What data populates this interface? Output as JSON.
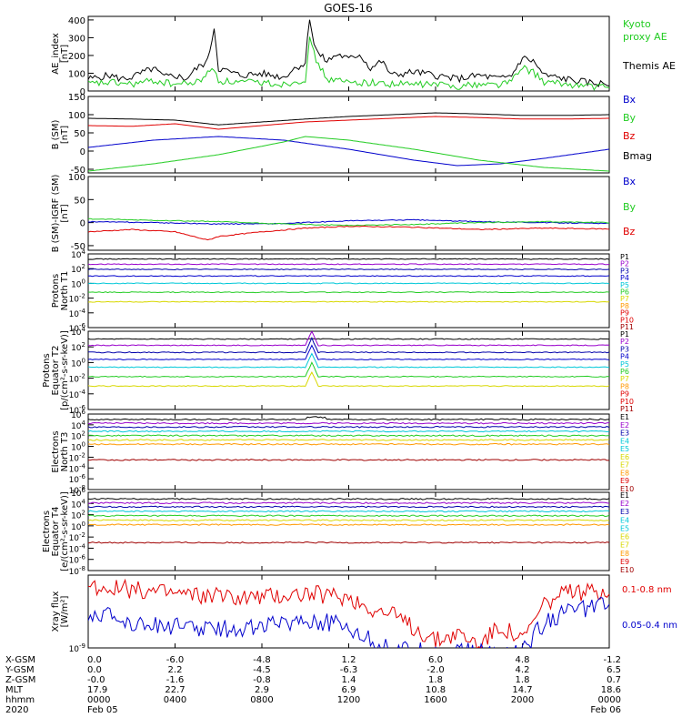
{
  "title": "GOES-16",
  "colors": {
    "black": "#000000",
    "red": "#e00000",
    "green": "#22cc22",
    "blue": "#0000cc",
    "cyan": "#00c8d8",
    "darkred": "#a00000",
    "orange": "#ff9900",
    "yellow": "#d8d800",
    "purple": "#9900cc",
    "magenta": "#cc00aa",
    "darkblue": "#0000aa"
  },
  "chart_data": [
    {
      "type": "line",
      "ylabel": [
        "AE_index",
        "[nT]"
      ],
      "ylim": [
        0,
        420
      ],
      "yticks": [
        "400",
        "300",
        "200",
        "100",
        "0"
      ],
      "ytick_values": [
        400,
        300,
        200,
        100,
        0
      ],
      "legend": [
        {
          "name": "Kyoto",
          "color": "green"
        },
        {
          "name": "proxy AE",
          "color": "green"
        },
        {
          "name": "Themis AE",
          "color": "black"
        }
      ],
      "series": [
        {
          "name": "Themis AE",
          "color": "black",
          "x": [
            0,
            1,
            1.5,
            2,
            3,
            3.5,
            4,
            4.5,
            5,
            5.5,
            5.8,
            6,
            6.5,
            7,
            8,
            9,
            9.5,
            10,
            10.2,
            10.4,
            10.6,
            11,
            11.5,
            12,
            12.5,
            13,
            13.5,
            14,
            15,
            16,
            17,
            18,
            19,
            19.5,
            20,
            20.5,
            21,
            22,
            23,
            24
          ],
          "y": [
            60,
            80,
            60,
            70,
            120,
            70,
            80,
            60,
            120,
            160,
            350,
            120,
            100,
            80,
            90,
            70,
            120,
            150,
            410,
            260,
            200,
            160,
            200,
            170,
            200,
            120,
            160,
            80,
            100,
            80,
            60,
            80,
            60,
            80,
            180,
            160,
            80,
            60,
            40,
            30
          ]
        },
        {
          "name": "Kyoto proxy AE",
          "color": "green",
          "x": [
            0,
            1,
            2,
            3,
            4,
            5,
            5.8,
            6,
            7,
            8,
            9,
            10,
            10.2,
            10.4,
            10.6,
            11,
            12,
            13,
            14,
            15,
            16,
            17,
            18,
            19,
            19.5,
            20,
            20.5,
            21,
            22,
            23,
            24
          ],
          "y": [
            30,
            40,
            30,
            50,
            30,
            40,
            120,
            50,
            40,
            40,
            30,
            60,
            280,
            200,
            140,
            60,
            40,
            40,
            30,
            30,
            30,
            20,
            30,
            30,
            50,
            120,
            100,
            40,
            30,
            20,
            10
          ]
        }
      ]
    },
    {
      "type": "line",
      "ylabel": [
        "B (SM)",
        "[nT]"
      ],
      "ylim": [
        -60,
        150
      ],
      "yticks": [
        "150",
        "100",
        "50",
        "0",
        "-50"
      ],
      "ytick_values": [
        150,
        100,
        50,
        0,
        -50
      ],
      "legend": [
        {
          "name": "Bx",
          "color": "blue"
        },
        {
          "name": "By",
          "color": "green"
        },
        {
          "name": "Bz",
          "color": "red"
        },
        {
          "name": "Bmag",
          "color": "black"
        }
      ],
      "series": [
        {
          "name": "Bx",
          "color": "blue",
          "x": [
            0,
            3,
            6,
            9,
            12,
            15,
            17,
            19,
            21,
            24
          ],
          "y": [
            10,
            30,
            40,
            30,
            5,
            -25,
            -40,
            -35,
            -20,
            5
          ]
        },
        {
          "name": "By",
          "color": "green",
          "x": [
            0,
            3,
            6,
            9,
            10,
            12,
            15,
            18,
            21,
            24
          ],
          "y": [
            -55,
            -35,
            -10,
            25,
            40,
            30,
            5,
            -25,
            -45,
            -55
          ]
        },
        {
          "name": "Bz",
          "color": "red",
          "x": [
            0,
            2,
            4,
            6,
            8,
            10,
            12,
            14,
            16,
            18,
            20,
            22,
            24
          ],
          "y": [
            70,
            68,
            75,
            60,
            70,
            80,
            85,
            90,
            95,
            92,
            88,
            88,
            90
          ]
        },
        {
          "name": "Bmag",
          "color": "black",
          "x": [
            0,
            2,
            4,
            6,
            8,
            10,
            12,
            14,
            16,
            18,
            20,
            22,
            24
          ],
          "y": [
            90,
            88,
            85,
            72,
            80,
            88,
            95,
            100,
            105,
            102,
            98,
            98,
            100
          ]
        }
      ]
    },
    {
      "type": "line",
      "ylabel": [
        "B (SM)-IGRF (SM)",
        "[nT]"
      ],
      "ylim": [
        -60,
        100
      ],
      "yticks": [
        "100",
        "50",
        "0",
        "-50"
      ],
      "ytick_values": [
        100,
        50,
        0,
        -50
      ],
      "legend": [
        {
          "name": "Bx",
          "color": "blue"
        },
        {
          "name": "By",
          "color": "green"
        },
        {
          "name": "Bz",
          "color": "red"
        }
      ],
      "series": [
        {
          "name": "Bx",
          "color": "blue",
          "x": [
            0,
            3,
            6,
            9,
            12,
            15,
            18,
            21,
            24
          ],
          "y": [
            2,
            0,
            -3,
            -2,
            4,
            6,
            2,
            0,
            -2
          ]
        },
        {
          "name": "By",
          "color": "green",
          "x": [
            0,
            3,
            6,
            9,
            12,
            15,
            18,
            21,
            24
          ],
          "y": [
            8,
            5,
            2,
            -3,
            -6,
            -4,
            0,
            2,
            0
          ]
        },
        {
          "name": "Bz",
          "color": "red",
          "x": [
            0,
            2,
            4,
            5.5,
            6,
            8,
            10,
            12,
            15,
            18,
            21,
            24
          ],
          "y": [
            -20,
            -15,
            -20,
            -38,
            -30,
            -20,
            -12,
            -8,
            -10,
            -15,
            -12,
            -14
          ]
        }
      ]
    },
    {
      "type": "line",
      "ylabel": [
        "Protons",
        "North T1"
      ],
      "log": true,
      "ylim_exp": [
        -6,
        4
      ],
      "ytick_exps": [
        4,
        2,
        0,
        -2,
        -4,
        -6
      ],
      "legend": [
        {
          "name": "P1",
          "color": "black"
        },
        {
          "name": "P2",
          "color": "purple"
        },
        {
          "name": "P3",
          "color": "darkblue"
        },
        {
          "name": "P4",
          "color": "blue"
        },
        {
          "name": "P5",
          "color": "cyan"
        },
        {
          "name": "P6",
          "color": "green"
        },
        {
          "name": "P7",
          "color": "yellow"
        },
        {
          "name": "P8",
          "color": "orange"
        },
        {
          "name": "P9",
          "color": "red"
        },
        {
          "name": "P10",
          "color": "red"
        },
        {
          "name": "P11",
          "color": "darkred"
        }
      ],
      "series": [
        {
          "name": "P1",
          "color": "black",
          "level": 3.3
        },
        {
          "name": "P2",
          "color": "purple",
          "level": 2.6
        },
        {
          "name": "P3",
          "color": "darkblue",
          "level": 1.9
        },
        {
          "name": "P4",
          "color": "blue",
          "level": 1.0
        },
        {
          "name": "P5",
          "color": "cyan",
          "level": 0.0
        },
        {
          "name": "P6",
          "color": "green",
          "level": -1.2
        },
        {
          "name": "P7",
          "color": "yellow",
          "level": -2.5
        }
      ]
    },
    {
      "type": "line",
      "ylabel": [
        "Protons",
        "Equator T2",
        "[p/(cm²-s-sr-keV)]"
      ],
      "log": true,
      "ylim_exp": [
        -6,
        4
      ],
      "ytick_exps": [
        4,
        2,
        0,
        -2,
        -4,
        -6
      ],
      "legend": [
        {
          "name": "P1",
          "color": "black"
        },
        {
          "name": "P2",
          "color": "purple"
        },
        {
          "name": "P3",
          "color": "darkblue"
        },
        {
          "name": "P4",
          "color": "blue"
        },
        {
          "name": "P5",
          "color": "cyan"
        },
        {
          "name": "P6",
          "color": "green"
        },
        {
          "name": "P7",
          "color": "yellow"
        },
        {
          "name": "P8",
          "color": "orange"
        },
        {
          "name": "P9",
          "color": "red"
        },
        {
          "name": "P10",
          "color": "red"
        },
        {
          "name": "P11",
          "color": "darkred"
        }
      ],
      "series": [
        {
          "name": "P1",
          "color": "black",
          "level": 3.0
        },
        {
          "name": "P2",
          "color": "purple",
          "level": 2.2
        },
        {
          "name": "P3",
          "color": "darkblue",
          "level": 1.3
        },
        {
          "name": "P4",
          "color": "blue",
          "level": 0.4
        },
        {
          "name": "P5",
          "color": "cyan",
          "level": -0.6
        },
        {
          "name": "P6",
          "color": "green",
          "level": -1.8
        },
        {
          "name": "P7",
          "color": "yellow",
          "level": -3.0
        }
      ]
    },
    {
      "type": "line",
      "ylabel": [
        "Electrons",
        "North T3"
      ],
      "log": true,
      "ylim_exp": [
        -8,
        6
      ],
      "ytick_exps": [
        6,
        4,
        2,
        0,
        -2,
        -4,
        -6,
        -8
      ],
      "legend": [
        {
          "name": "E1",
          "color": "black"
        },
        {
          "name": "E2",
          "color": "purple"
        },
        {
          "name": "E3",
          "color": "darkblue"
        },
        {
          "name": "E4",
          "color": "cyan"
        },
        {
          "name": "E5",
          "color": "cyan"
        },
        {
          "name": "E6",
          "color": "yellow"
        },
        {
          "name": "E7",
          "color": "yellow"
        },
        {
          "name": "E8",
          "color": "orange"
        },
        {
          "name": "E9",
          "color": "red"
        },
        {
          "name": "E10",
          "color": "darkred"
        }
      ],
      "series": [
        {
          "name": "E1",
          "color": "black",
          "level": 5.0
        },
        {
          "name": "E2",
          "color": "purple",
          "level": 4.3
        },
        {
          "name": "E3",
          "color": "darkblue",
          "level": 3.6
        },
        {
          "name": "E4",
          "color": "cyan",
          "level": 2.8
        },
        {
          "name": "E5",
          "color": "green",
          "level": 2.0
        },
        {
          "name": "E6",
          "color": "yellow",
          "level": 1.2
        },
        {
          "name": "E7",
          "color": "orange",
          "level": 0.4
        },
        {
          "name": "E9",
          "color": "darkred",
          "level": -2.5
        }
      ]
    },
    {
      "type": "line",
      "ylabel": [
        "Electrons",
        "Equator T4",
        "[e/(cm²-s-sr-keV)]"
      ],
      "log": true,
      "ylim_exp": [
        -8,
        6
      ],
      "ytick_exps": [
        6,
        4,
        2,
        0,
        -2,
        -4,
        -6,
        -8
      ],
      "legend": [
        {
          "name": "E1",
          "color": "black"
        },
        {
          "name": "E2",
          "color": "purple"
        },
        {
          "name": "E3",
          "color": "darkblue"
        },
        {
          "name": "E4",
          "color": "cyan"
        },
        {
          "name": "E5",
          "color": "cyan"
        },
        {
          "name": "E6",
          "color": "yellow"
        },
        {
          "name": "E7",
          "color": "yellow"
        },
        {
          "name": "E8",
          "color": "orange"
        },
        {
          "name": "E9",
          "color": "red"
        },
        {
          "name": "E10",
          "color": "darkred"
        }
      ],
      "series": [
        {
          "name": "E1",
          "color": "black",
          "level": 4.8
        },
        {
          "name": "E2",
          "color": "purple",
          "level": 4.1
        },
        {
          "name": "E3",
          "color": "darkblue",
          "level": 3.4
        },
        {
          "name": "E4",
          "color": "cyan",
          "level": 2.6
        },
        {
          "name": "E5",
          "color": "green",
          "level": 1.8
        },
        {
          "name": "E6",
          "color": "yellow",
          "level": 1.0
        },
        {
          "name": "E7",
          "color": "orange",
          "level": 0.2
        },
        {
          "name": "E9",
          "color": "darkred",
          "level": -3.0
        }
      ]
    },
    {
      "type": "line",
      "ylabel": [
        "Xray flux",
        "[W/m²]"
      ],
      "log": true,
      "ylim_exp": [
        -9,
        -7
      ],
      "ytick_exps": [
        -9
      ],
      "legend": [
        {
          "name": "0.1-0.8 nm",
          "color": "red"
        },
        {
          "name": "0.05-0.4 nm",
          "color": "blue"
        }
      ],
      "series": [
        {
          "name": "0.1-0.8 nm",
          "color": "red",
          "x": [
            0,
            2,
            4,
            6,
            8,
            10,
            12,
            13,
            14,
            16,
            17,
            18,
            19,
            20,
            21,
            22,
            24
          ],
          "y": [
            -7.3,
            -7.4,
            -7.5,
            -7.6,
            -7.6,
            -7.5,
            -7.6,
            -7.9,
            -8.1,
            -8.8,
            -8.6,
            -8.9,
            -8.4,
            -8.8,
            -7.8,
            -7.5,
            -7.4
          ]
        },
        {
          "name": "0.05-0.4 nm",
          "color": "blue",
          "x": [
            0,
            2,
            4,
            6,
            8,
            10,
            12,
            13,
            14,
            15,
            20,
            21,
            22,
            24
          ],
          "y": [
            -8.0,
            -8.3,
            -8.4,
            -8.5,
            -8.4,
            -8.2,
            -8.4,
            -8.8,
            -9.0,
            -9.1,
            -9.1,
            -8.3,
            -8.0,
            -7.8
          ]
        }
      ]
    }
  ],
  "footer": {
    "rows": [
      {
        "label": "X-GSM",
        "values": [
          "0.0",
          "-6.0",
          "-4.8",
          "1.2",
          "6.0",
          "4.8",
          "-1.2"
        ]
      },
      {
        "label": "Y-GSM",
        "values": [
          "0.0",
          "2.2",
          "-4.5",
          "-6.3",
          "-2.0",
          "4.2",
          "6.5"
        ]
      },
      {
        "label": "Z-GSM",
        "values": [
          "-0.0",
          "-1.6",
          "-0.8",
          "1.4",
          "1.8",
          "1.8",
          "0.7"
        ]
      },
      {
        "label": "MLT",
        "values": [
          "17.9",
          "22.7",
          "2.9",
          "6.9",
          "10.8",
          "14.7",
          "18.6"
        ]
      },
      {
        "label": "hhmm",
        "values": [
          "0000",
          "0400",
          "0800",
          "1200",
          "1600",
          "2000",
          "0000"
        ]
      }
    ],
    "year": "2020",
    "date_start": "Feb 05",
    "date_end": "Feb 06",
    "tick_hours": [
      0,
      4,
      8,
      12,
      16,
      20,
      24
    ]
  }
}
